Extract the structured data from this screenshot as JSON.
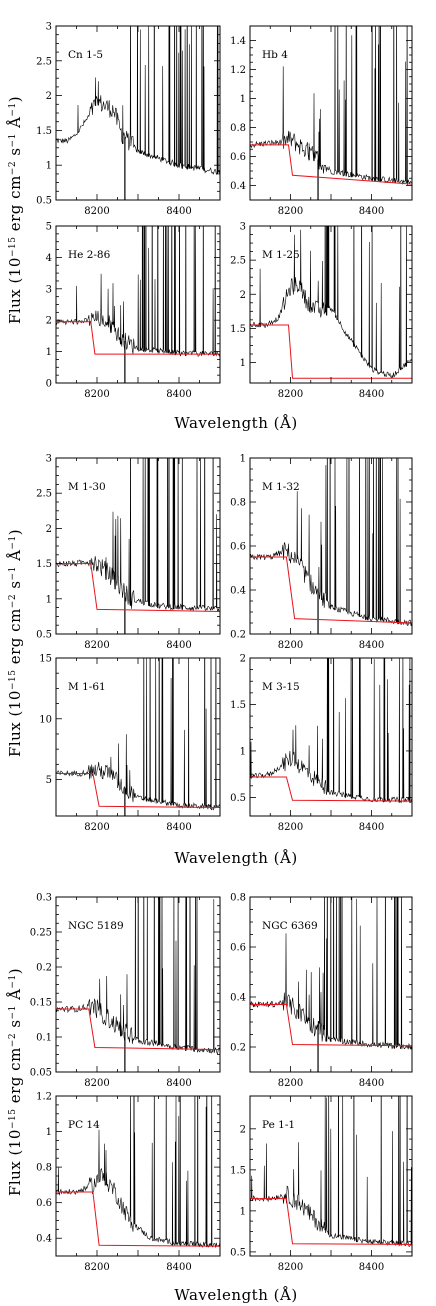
{
  "figure": {
    "xlabel": "Wavelength (Å)",
    "ylabel_prefix": "Flux (10",
    "ylabel_exp": "−15",
    "ylabel_units": " erg cm",
    "ylabel_units_exp": "−2",
    "ylabel_s": " s",
    "ylabel_s_exp": "−1",
    "ylabel_A": " Å",
    "ylabel_A_exp": "−1",
    "ylabel_close": ")",
    "colors": {
      "observed": "#000000",
      "model": "#e8141b"
    }
  },
  "chart_data": [
    {
      "type": "line",
      "label": "Cn 1-5",
      "xlim": [
        8100,
        8500
      ],
      "ylim": [
        0.5,
        3
      ],
      "xticks": [
        "8200",
        "8400"
      ],
      "yticks": [
        "0.5",
        "1",
        "1.5",
        "2",
        "2.5",
        "3"
      ],
      "series": [
        {
          "values": [
            [
              8100,
              1.35
            ],
            [
              8130,
              1.35
            ],
            [
              8150,
              1.45
            ],
            [
              8180,
              1.7
            ],
            [
              8200,
              1.92
            ],
            [
              8220,
              1.85
            ],
            [
              8240,
              1.8
            ],
            [
              8260,
              1.45
            ],
            [
              8300,
              1.2
            ],
            [
              8350,
              1.1
            ],
            [
              8400,
              1.0
            ],
            [
              8450,
              0.95
            ],
            [
              8500,
              0.9
            ]
          ]
        }
      ]
    },
    {
      "type": "line",
      "label": "Hb 4",
      "xlim": [
        8100,
        8500
      ],
      "ylim": [
        0.3,
        1.5
      ],
      "xticks": [
        "8200",
        "8400"
      ],
      "yticks": [
        "0.4",
        "0.6",
        "0.8",
        "1",
        "1.2",
        "1.4"
      ],
      "series": [
        {
          "values": [
            [
              8100,
              0.68
            ],
            [
              8180,
              0.7
            ],
            [
              8200,
              0.72
            ],
            [
              8220,
              0.68
            ],
            [
              8260,
              0.6
            ],
            [
              8300,
              0.5
            ],
            [
              8400,
              0.45
            ],
            [
              8500,
              0.42
            ]
          ]
        },
        {
          "values": [
            [
              8100,
              0.68
            ],
            [
              8195,
              0.68
            ],
            [
              8205,
              0.47
            ],
            [
              8500,
              0.41
            ]
          ]
        }
      ]
    },
    {
      "type": "line",
      "label": "He 2-86",
      "xlim": [
        8100,
        8500
      ],
      "ylim": [
        0,
        5
      ],
      "xticks": [
        "8200",
        "8400"
      ],
      "yticks": [
        "0",
        "1",
        "2",
        "3",
        "4",
        "5"
      ],
      "series": [
        {
          "values": [
            [
              8100,
              1.95
            ],
            [
              8160,
              1.95
            ],
            [
              8200,
              2.05
            ],
            [
              8230,
              1.9
            ],
            [
              8260,
              1.4
            ],
            [
              8300,
              1.1
            ],
            [
              8400,
              0.95
            ],
            [
              8500,
              0.92
            ]
          ]
        },
        {
          "values": [
            [
              8100,
              1.95
            ],
            [
              8185,
              1.95
            ],
            [
              8195,
              0.92
            ],
            [
              8500,
              0.92
            ]
          ]
        }
      ]
    },
    {
      "type": "line",
      "label": "M 1-25",
      "xlim": [
        8100,
        8500
      ],
      "ylim": [
        0.7,
        3
      ],
      "xticks": [
        "8200",
        "8400"
      ],
      "yticks": [
        "1",
        "1.5",
        "2",
        "2.5",
        "3"
      ],
      "series": [
        {
          "values": [
            [
              8100,
              1.55
            ],
            [
              8140,
              1.55
            ],
            [
              8170,
              1.65
            ],
            [
              8200,
              2.1
            ],
            [
              8220,
              2.15
            ],
            [
              8240,
              1.9
            ],
            [
              8270,
              1.75
            ],
            [
              8300,
              1.8
            ],
            [
              8340,
              1.4
            ],
            [
              8400,
              0.9
            ],
            [
              8450,
              0.8
            ],
            [
              8500,
              1.05
            ]
          ]
        },
        {
          "values": [
            [
              8100,
              1.55
            ],
            [
              8195,
              1.55
            ],
            [
              8205,
              0.77
            ],
            [
              8500,
              0.77
            ]
          ]
        }
      ]
    },
    {
      "type": "line",
      "label": "M 1-30",
      "xlim": [
        8100,
        8500
      ],
      "ylim": [
        0.5,
        3
      ],
      "xticks": [
        "8200",
        "8400"
      ],
      "yticks": [
        "0.5",
        "1",
        "1.5",
        "2",
        "2.5",
        "3"
      ],
      "series": [
        {
          "values": [
            [
              8100,
              1.5
            ],
            [
              8150,
              1.5
            ],
            [
              8190,
              1.55
            ],
            [
              8210,
              1.45
            ],
            [
              8240,
              1.3
            ],
            [
              8280,
              1.0
            ],
            [
              8350,
              0.9
            ],
            [
              8500,
              0.85
            ]
          ]
        },
        {
          "values": [
            [
              8100,
              1.5
            ],
            [
              8185,
              1.5
            ],
            [
              8200,
              0.85
            ],
            [
              8500,
              0.82
            ]
          ]
        }
      ]
    },
    {
      "type": "line",
      "label": "M 1-32",
      "xlim": [
        8100,
        8500
      ],
      "ylim": [
        0.2,
        1
      ],
      "xticks": [
        "8200",
        "8400"
      ],
      "yticks": [
        "0.2",
        "0.4",
        "0.6",
        "0.8",
        "1"
      ],
      "series": [
        {
          "values": [
            [
              8100,
              0.55
            ],
            [
              8150,
              0.55
            ],
            [
              8190,
              0.58
            ],
            [
              8220,
              0.52
            ],
            [
              8260,
              0.4
            ],
            [
              8300,
              0.32
            ],
            [
              8400,
              0.27
            ],
            [
              8500,
              0.25
            ]
          ]
        },
        {
          "values": [
            [
              8100,
              0.55
            ],
            [
              8190,
              0.55
            ],
            [
              8210,
              0.27
            ],
            [
              8500,
              0.25
            ]
          ]
        }
      ]
    },
    {
      "type": "line",
      "label": "M 1-61",
      "xlim": [
        8100,
        8500
      ],
      "ylim": [
        2,
        15
      ],
      "xticks": [
        "8200",
        "8400"
      ],
      "yticks": [
        "5",
        "10",
        "15"
      ],
      "series": [
        {
          "values": [
            [
              8100,
              5.5
            ],
            [
              8160,
              5.5
            ],
            [
              8200,
              5.8
            ],
            [
              8230,
              5.5
            ],
            [
              8260,
              4.5
            ],
            [
              8300,
              3.5
            ],
            [
              8400,
              2.9
            ],
            [
              8500,
              2.7
            ]
          ]
        },
        {
          "values": [
            [
              8100,
              5.5
            ],
            [
              8190,
              5.5
            ],
            [
              8205,
              2.8
            ],
            [
              8500,
              2.7
            ]
          ]
        }
      ]
    },
    {
      "type": "line",
      "label": "M 3-15",
      "xlim": [
        8100,
        8500
      ],
      "ylim": [
        0.3,
        2
      ],
      "xticks": [
        "8200",
        "8400"
      ],
      "yticks": [
        "0.5",
        "1",
        "1.5",
        "2"
      ],
      "series": [
        {
          "values": [
            [
              8100,
              0.72
            ],
            [
              8150,
              0.75
            ],
            [
              8180,
              0.85
            ],
            [
              8200,
              0.92
            ],
            [
              8230,
              0.82
            ],
            [
              8260,
              0.7
            ],
            [
              8300,
              0.55
            ],
            [
              8400,
              0.48
            ],
            [
              8500,
              0.47
            ]
          ]
        },
        {
          "values": [
            [
              8100,
              0.72
            ],
            [
              8190,
              0.72
            ],
            [
              8205,
              0.47
            ],
            [
              8500,
              0.46
            ]
          ]
        }
      ]
    },
    {
      "type": "line",
      "label": "NGC 5189",
      "xlim": [
        8100,
        8500
      ],
      "ylim": [
        0.05,
        0.3
      ],
      "xticks": [
        "8200",
        "8400"
      ],
      "yticks": [
        "0.05",
        "0.1",
        "0.15",
        "0.2",
        "0.25",
        "0.3"
      ],
      "series": [
        {
          "values": [
            [
              8100,
              0.14
            ],
            [
              8150,
              0.14
            ],
            [
              8190,
              0.145
            ],
            [
              8220,
              0.13
            ],
            [
              8260,
              0.11
            ],
            [
              8300,
              0.095
            ],
            [
              8400,
              0.085
            ],
            [
              8500,
              0.08
            ]
          ]
        },
        {
          "values": [
            [
              8100,
              0.14
            ],
            [
              8180,
              0.14
            ],
            [
              8195,
              0.085
            ],
            [
              8500,
              0.082
            ]
          ]
        }
      ]
    },
    {
      "type": "line",
      "label": "NGC 6369",
      "xlim": [
        8100,
        8500
      ],
      "ylim": [
        0.1,
        0.8
      ],
      "xticks": [
        "8200",
        "8400"
      ],
      "yticks": [
        "0.2",
        "0.4",
        "0.6",
        "0.8"
      ],
      "series": [
        {
          "values": [
            [
              8100,
              0.37
            ],
            [
              8150,
              0.37
            ],
            [
              8190,
              0.38
            ],
            [
              8220,
              0.34
            ],
            [
              8260,
              0.28
            ],
            [
              8300,
              0.23
            ],
            [
              8400,
              0.21
            ],
            [
              8500,
              0.2
            ]
          ]
        },
        {
          "values": [
            [
              8100,
              0.37
            ],
            [
              8190,
              0.37
            ],
            [
              8205,
              0.21
            ],
            [
              8500,
              0.205
            ]
          ]
        }
      ]
    },
    {
      "type": "line",
      "label": "PC 14",
      "xlim": [
        8100,
        8500
      ],
      "ylim": [
        0.3,
        1.2
      ],
      "xticks": [
        "8200",
        "8400"
      ],
      "yticks": [
        "0.4",
        "0.6",
        "0.8",
        "1",
        "1.2"
      ],
      "series": [
        {
          "values": [
            [
              8100,
              0.66
            ],
            [
              8150,
              0.66
            ],
            [
              8190,
              0.7
            ],
            [
              8210,
              0.75
            ],
            [
              8240,
              0.68
            ],
            [
              8280,
              0.5
            ],
            [
              8330,
              0.4
            ],
            [
              8400,
              0.37
            ],
            [
              8500,
              0.36
            ]
          ]
        },
        {
          "values": [
            [
              8100,
              0.66
            ],
            [
              8190,
              0.66
            ],
            [
              8205,
              0.36
            ],
            [
              8500,
              0.355
            ]
          ]
        }
      ]
    },
    {
      "type": "line",
      "label": "Pe 1-1",
      "xlim": [
        8100,
        8500
      ],
      "ylim": [
        0.45,
        2.4
      ],
      "xticks": [
        "8200",
        "8400"
      ],
      "yticks": [
        "0.5",
        "1",
        "1.5",
        "2"
      ],
      "series": [
        {
          "values": [
            [
              8100,
              1.15
            ],
            [
              8150,
              1.15
            ],
            [
              8190,
              1.2
            ],
            [
              8220,
              1.1
            ],
            [
              8260,
              0.9
            ],
            [
              8300,
              0.7
            ],
            [
              8400,
              0.62
            ],
            [
              8500,
              0.6
            ]
          ]
        },
        {
          "values": [
            [
              8100,
              1.15
            ],
            [
              8190,
              1.15
            ],
            [
              8205,
              0.6
            ],
            [
              8500,
              0.59
            ]
          ]
        }
      ]
    }
  ]
}
